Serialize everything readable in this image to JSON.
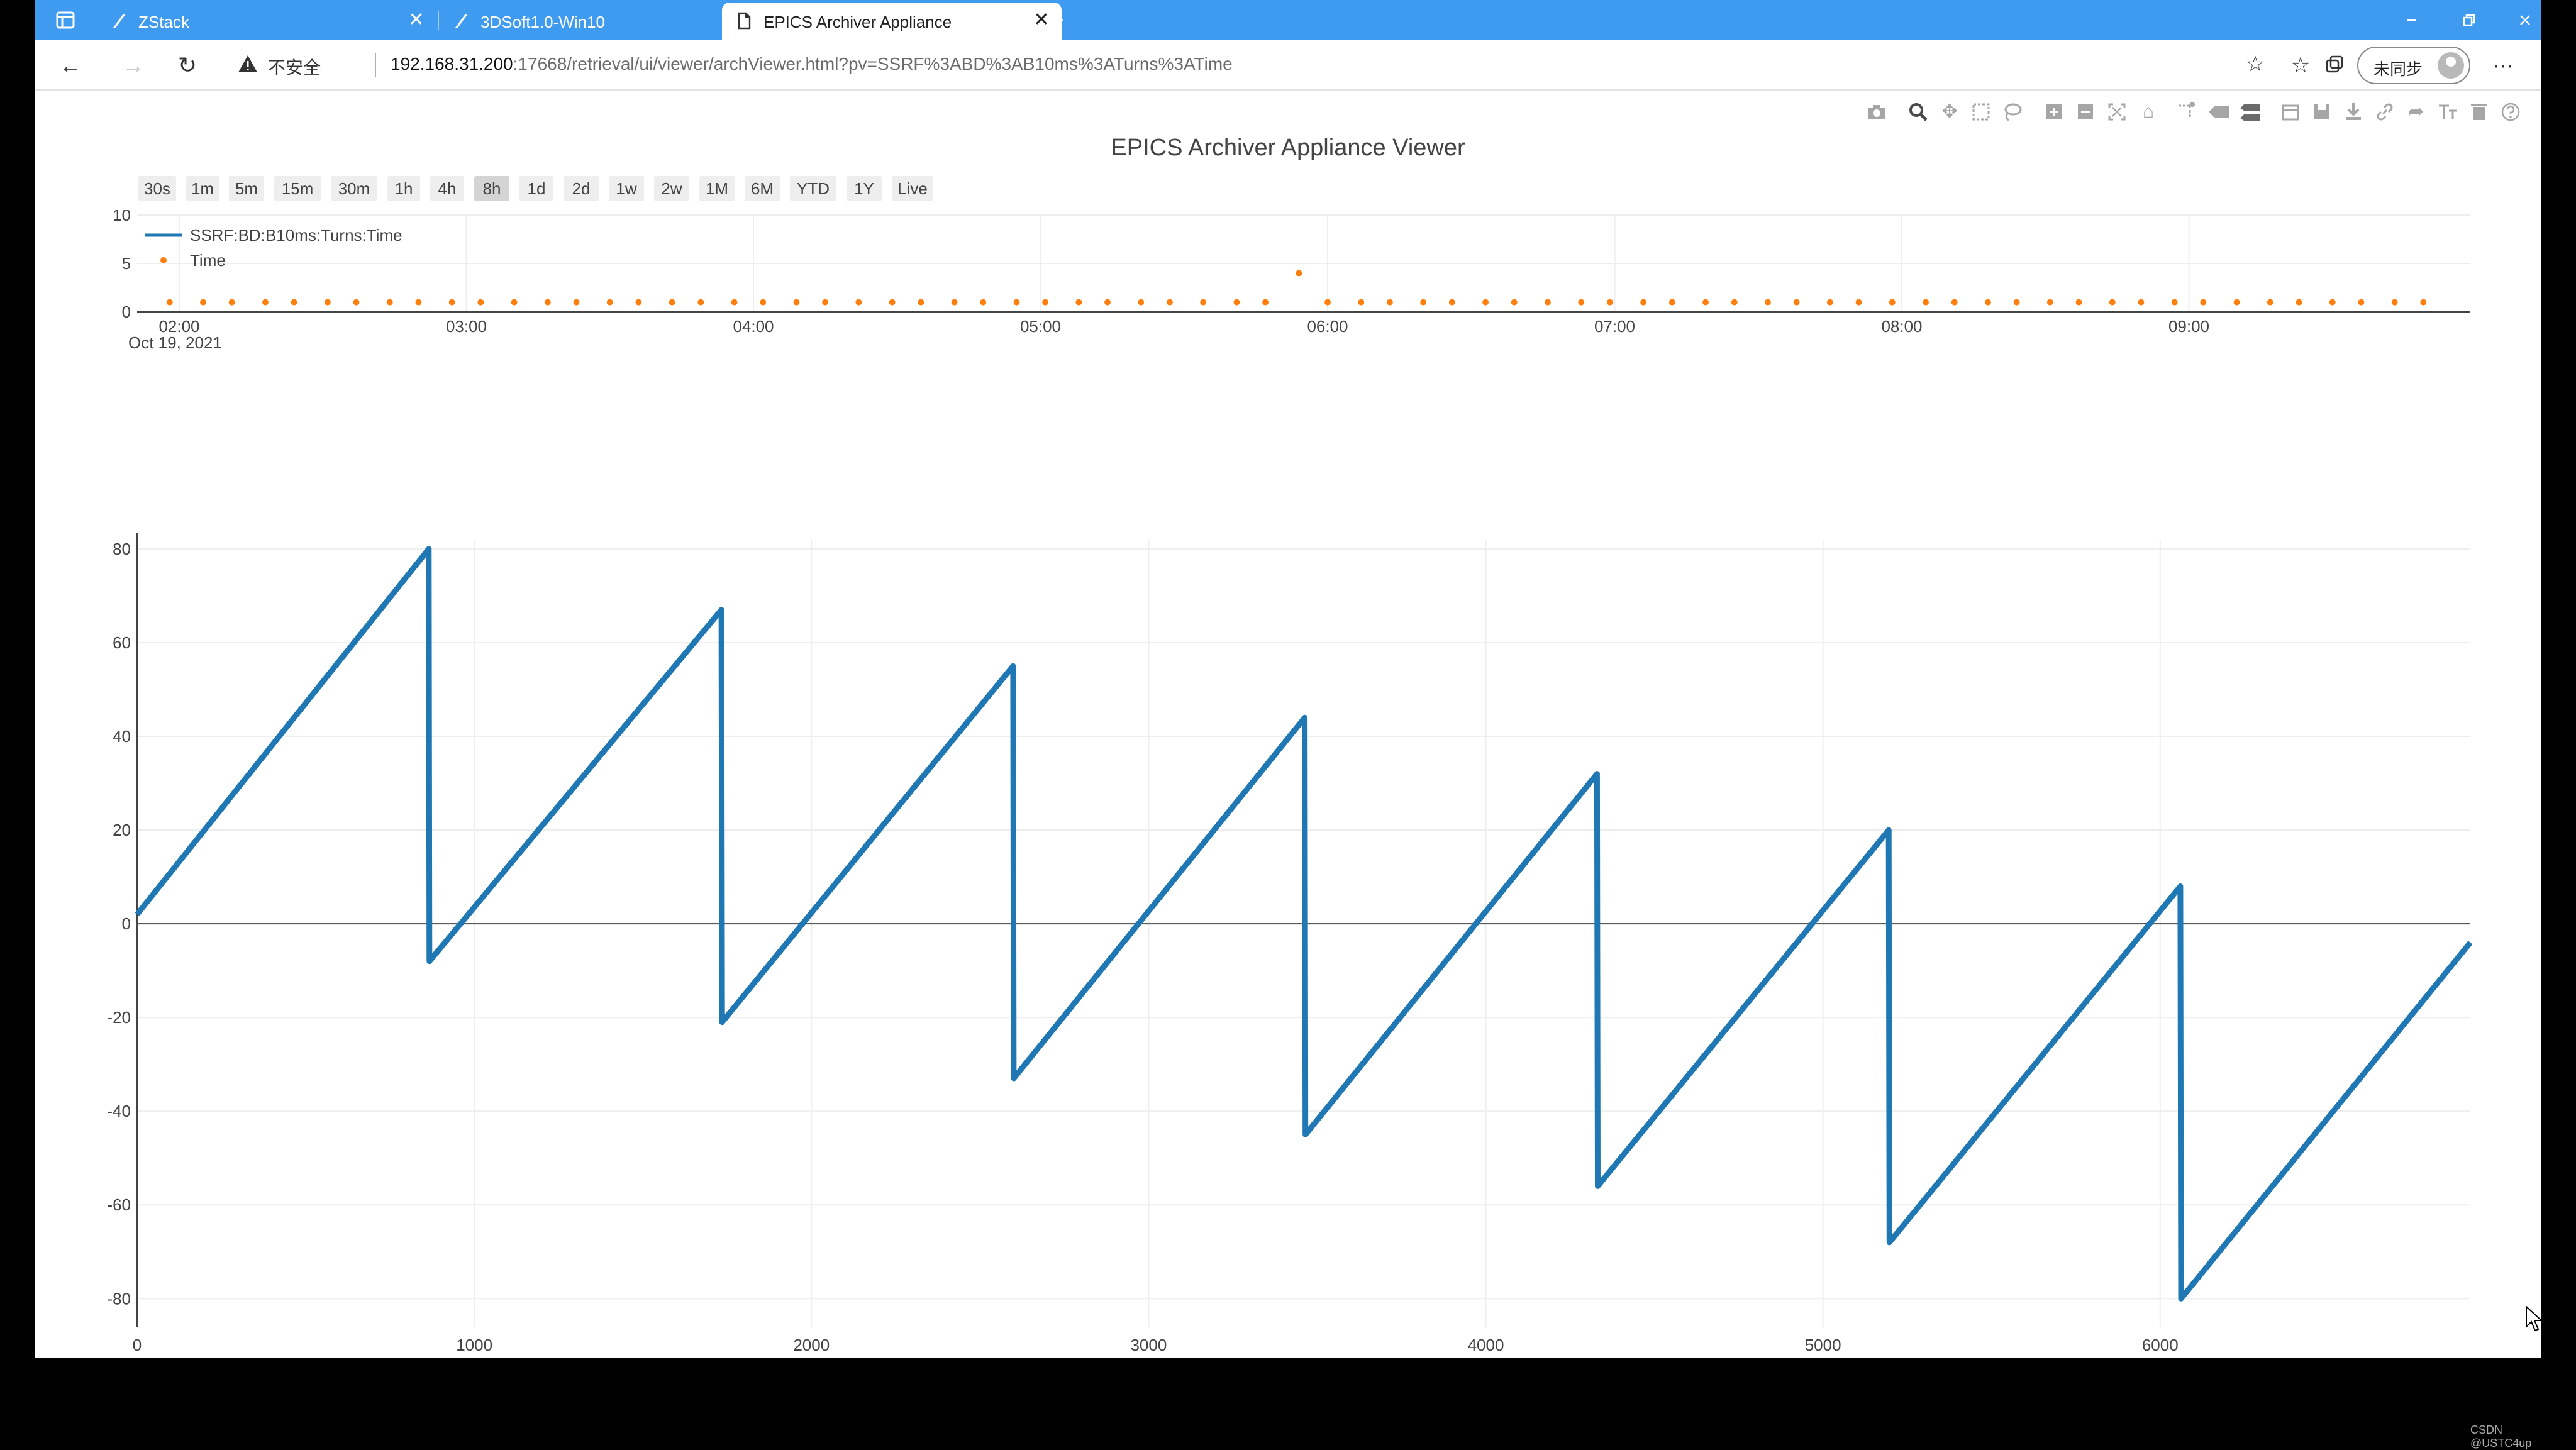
{
  "browser": {
    "tabs": [
      {
        "label": "ZStack",
        "active": false
      },
      {
        "label": "3DSoft1.0-Win10",
        "active": false
      },
      {
        "label": "EPICS Archiver Appliance",
        "active": true
      }
    ],
    "new_tab_label": "+",
    "address": {
      "security_label": "不安全",
      "url_host": "192.168.31.200",
      "url_rest": ":17668/retrieval/ui/viewer/archViewer.html?pv=SSRF%3ABD%3AB10ms%3ATurns%3ATime"
    },
    "profile_label": "未同步"
  },
  "plot": {
    "title": "EPICS Archiver Appliance Viewer",
    "range_buttons": [
      "30s",
      "1m",
      "5m",
      "15m",
      "30m",
      "1h",
      "4h",
      "8h",
      "1d",
      "2d",
      "1w",
      "2w",
      "1M",
      "6M",
      "YTD",
      "1Y",
      "Live"
    ],
    "active_range": "8h"
  },
  "colors": {
    "series_blue": "#1f77b4",
    "series_orange": "#ff7f0e",
    "accent_tabstrip": "#3f9bef"
  },
  "chart_data": [
    {
      "type": "scatter",
      "legend": [
        {
          "name": "SSRF:BD:B10ms:Turns:Time",
          "style": "line",
          "color": "#1f77b4"
        },
        {
          "name": "Time",
          "style": "markers",
          "color": "#ff7f0e"
        }
      ],
      "legend_position": "top-left",
      "x_axis_type": "date",
      "x_date_label": "Oct 19, 2021",
      "x_tick_labels": [
        "02:00",
        "03:00",
        "04:00",
        "05:00",
        "06:00",
        "07:00",
        "08:00",
        "09:00"
      ],
      "ylim": [
        0,
        10
      ],
      "y_ticks": [
        0,
        5,
        10
      ],
      "series": [
        {
          "name": "Time",
          "x": [
            "01:58",
            "02:05",
            "02:11",
            "02:18",
            "02:24",
            "02:31",
            "02:37",
            "02:44",
            "02:50",
            "02:57",
            "03:03",
            "03:10",
            "03:17",
            "03:23",
            "03:30",
            "03:36",
            "03:43",
            "03:49",
            "03:56",
            "04:02",
            "04:09",
            "04:15",
            "04:22",
            "04:29",
            "04:35",
            "04:42",
            "04:48",
            "04:55",
            "05:01",
            "05:08",
            "05:14",
            "05:21",
            "05:27",
            "05:34",
            "05:41",
            "05:47",
            "05:54",
            "06:00",
            "06:07",
            "06:13",
            "06:20",
            "06:26",
            "06:33",
            "06:39",
            "06:46",
            "06:53",
            "06:59",
            "07:06",
            "07:12",
            "07:19",
            "07:25",
            "07:32",
            "07:38",
            "07:45",
            "07:51",
            "07:58",
            "08:05",
            "08:11",
            "08:18",
            "08:24",
            "08:31",
            "08:37",
            "08:44",
            "08:50",
            "08:57",
            "09:03",
            "09:10",
            "09:17",
            "09:23",
            "09:30",
            "09:36",
            "09:43",
            "09:49"
          ],
          "y": [
            1,
            1,
            1,
            1,
            1,
            1,
            1,
            1,
            1,
            1,
            1,
            1,
            1,
            1,
            1,
            1,
            1,
            1,
            1,
            1,
            1,
            1,
            1,
            1,
            1,
            1,
            1,
            1,
            1,
            1,
            1,
            1,
            1,
            1,
            1,
            1,
            4,
            1,
            1,
            1,
            1,
            1,
            1,
            1,
            1,
            1,
            1,
            1,
            1,
            1,
            1,
            1,
            1,
            1,
            1,
            1,
            1,
            1,
            1,
            1,
            1,
            1,
            1,
            1,
            1,
            1,
            1,
            1,
            1,
            1,
            1,
            1,
            1
          ]
        }
      ],
      "grid": true
    },
    {
      "type": "line",
      "xlim": [
        0,
        6920
      ],
      "ylim": [
        -86,
        82
      ],
      "x_ticks": [
        0,
        1000,
        2000,
        3000,
        4000,
        5000,
        6000
      ],
      "y_ticks": [
        -80,
        -60,
        -40,
        -20,
        0,
        20,
        40,
        60,
        80
      ],
      "series": [
        {
          "name": "SSRF:BD:B10ms:Turns:Time",
          "x": [
            0,
            865,
            867,
            1733,
            1735,
            2598,
            2600,
            3463,
            3465,
            4330,
            4332,
            5195,
            5197,
            6060,
            6062,
            6920
          ],
          "y": [
            2,
            80,
            -8,
            67,
            -21,
            55,
            -33,
            44,
            -45,
            32,
            -56,
            20,
            -68,
            8,
            -80,
            -4
          ]
        }
      ],
      "grid": true
    }
  ]
}
